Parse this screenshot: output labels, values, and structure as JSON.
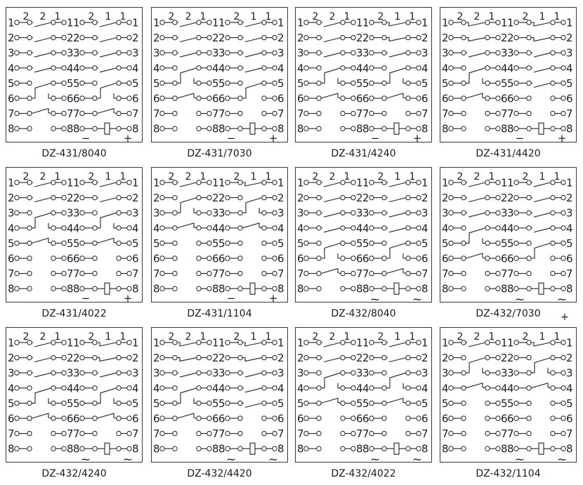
{
  "header_numbers": {
    "left": [
      "2",
      "2",
      "1"
    ],
    "right": [
      "2",
      "1",
      "1"
    ]
  },
  "row_numbers": [
    "1",
    "2",
    "3",
    "4",
    "5",
    "6",
    "7",
    "8"
  ],
  "panels": [
    {
      "model": "DZ-431/8040",
      "left": [
        "no",
        "no",
        "no",
        "no",
        "",
        "co",
        "br",
        ""
      ],
      "right": [
        "no",
        "no",
        "no",
        "no",
        "",
        "co",
        "br",
        ""
      ],
      "polarity": [
        "−",
        "+"
      ]
    },
    {
      "model": "DZ-431/7030",
      "left": [
        "no",
        "no",
        "no",
        "",
        "co",
        "br",
        "",
        ""
      ],
      "right": [
        "no",
        "no",
        "no",
        "no",
        "",
        "cu",
        "",
        ""
      ],
      "polarity": [
        "−",
        "+"
      ]
    },
    {
      "model": "DZ-431/4240",
      "left": [
        "no",
        "no",
        "no",
        "",
        "co",
        "br",
        "",
        ""
      ],
      "right": [
        "nc",
        "nc",
        "no",
        "",
        "co",
        "br",
        "",
        ""
      ],
      "polarity": [
        "−",
        "+"
      ]
    },
    {
      "model": "DZ-431/4420",
      "left": [
        "nc",
        "nc",
        "no",
        "",
        "co",
        "br",
        "",
        ""
      ],
      "right": [
        "nc",
        "nc",
        "no",
        "no",
        "no",
        "",
        "",
        ""
      ],
      "polarity": [
        "−",
        "+"
      ]
    },
    {
      "model": "DZ-431/4022",
      "left": [
        "no",
        "no",
        "",
        "co",
        "br",
        "",
        "",
        ""
      ],
      "right": [
        "no",
        "no",
        "",
        "co",
        "br",
        "",
        "",
        ""
      ],
      "polarity": [
        "−",
        "+"
      ]
    },
    {
      "model": "DZ-431/1104",
      "left": [
        "no",
        "",
        "co",
        "br",
        "",
        "",
        "",
        ""
      ],
      "right": [
        "nc",
        "",
        "co",
        "br",
        "",
        "",
        "",
        ""
      ],
      "polarity": [
        "−",
        "+"
      ]
    },
    {
      "model": "DZ-432/8040",
      "left": [
        "no",
        "no",
        "no",
        "no",
        "",
        "co",
        "br",
        ""
      ],
      "right": [
        "no",
        "no",
        "no",
        "no",
        "",
        "co",
        "br",
        ""
      ],
      "polarity": [
        "~",
        "~"
      ]
    },
    {
      "model": "DZ-432/7030",
      "left": [
        "no",
        "no",
        "no",
        "",
        "co",
        "br",
        "",
        ""
      ],
      "right": [
        "no",
        "no",
        "no",
        "no",
        "",
        "cu",
        "",
        ""
      ],
      "polarity": [
        "~",
        "~"
      ]
    },
    {
      "model": "DZ-432/4240",
      "left": [
        "no",
        "no",
        "no",
        "",
        "co",
        "br",
        "",
        ""
      ],
      "right": [
        "nc",
        "nc",
        "no",
        "",
        "co",
        "br",
        "",
        ""
      ],
      "polarity": [
        "~",
        "~"
      ]
    },
    {
      "model": "DZ-432/4420",
      "left": [
        "nc",
        "nc",
        "no",
        "",
        "co",
        "br",
        "",
        ""
      ],
      "right": [
        "nc",
        "nc",
        "no",
        "no",
        "no",
        "",
        "",
        ""
      ],
      "polarity": [
        "~",
        "~"
      ]
    },
    {
      "model": "DZ-432/4022",
      "left": [
        "no",
        "no",
        "",
        "co",
        "br",
        "",
        "",
        ""
      ],
      "right": [
        "no",
        "no",
        "",
        "co",
        "br",
        "",
        "",
        ""
      ],
      "polarity": [
        "~",
        "~"
      ]
    },
    {
      "model": "DZ-432/1104",
      "left": [
        "no",
        "",
        "co",
        "br",
        "",
        "",
        "",
        ""
      ],
      "right": [
        "nc",
        "",
        "co",
        "br",
        "",
        "",
        "",
        ""
      ],
      "polarity": [
        "~",
        "~"
      ]
    }
  ],
  "extra_mark": "+"
}
